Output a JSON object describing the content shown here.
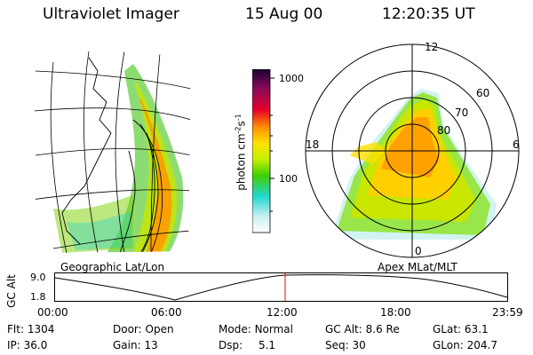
{
  "header": {
    "instrument": "Ultraviolet Imager",
    "date": "15 Aug 00",
    "time": "12:20:35 UT"
  },
  "colorbar": {
    "unit_label": "photon cm",
    "unit_exp1": "-2",
    "unit_s": "s",
    "unit_exp2": "-1",
    "ticks": [
      "1000",
      "100"
    ],
    "scale": "log"
  },
  "panels": {
    "geo_caption": "Geographic Lat/Lon",
    "apex_caption": "Apex MLat/MLT"
  },
  "polar": {
    "mlt_labels": [
      "12",
      "18",
      "6",
      "0"
    ],
    "lat_labels": [
      "60",
      "70",
      "80"
    ]
  },
  "altitude_plot": {
    "ylabel": "GC Alt",
    "y_ticks": [
      "9.0",
      "1.8"
    ],
    "x_ticks": [
      "00:00",
      "06:00",
      "12:00",
      "18:00",
      "23:59"
    ],
    "current_time_marker": "12:20",
    "marker_color": "#ff0000"
  },
  "status": {
    "row1": [
      {
        "label": "Flt:",
        "value": "1304"
      },
      {
        "label": "Door:",
        "value": "Open"
      },
      {
        "label": "Mode:",
        "value": "Normal"
      },
      {
        "label": "GC Alt:",
        "value": "8.6 Re"
      },
      {
        "label": "GLat:",
        "value": "63.1"
      }
    ],
    "row2": [
      {
        "label": "IP:",
        "value": "36.0"
      },
      {
        "label": "Gain:",
        "value": "13"
      },
      {
        "label": "Dsp:",
        "value": "5.1"
      },
      {
        "label": "Seq:",
        "value": "30"
      },
      {
        "label": "GLon:",
        "value": "204.7"
      }
    ]
  }
}
